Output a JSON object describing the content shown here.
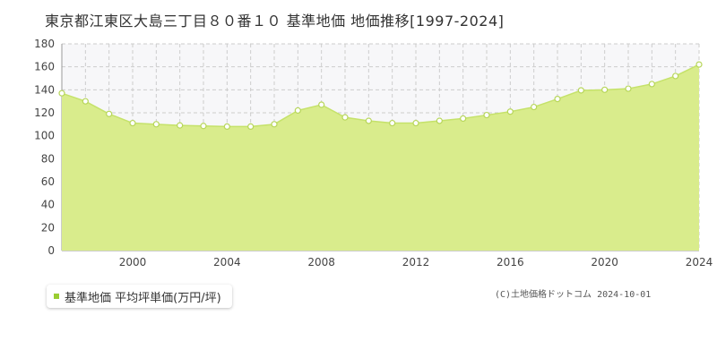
{
  "title": "東京都江東区大島三丁目８０番１０ 基準地価 地価推移[1997-2024]",
  "copyright": "(C)土地価格ドットコム 2024-10-01",
  "colors": {
    "fill": "#d9ec8c",
    "line": "#c5e26a",
    "marker_fill": "#ffffff",
    "marker_stroke": "#b7d65a",
    "grid": "#cccccc",
    "plot_bg": "#f7f7f9",
    "legend_swatch": "#9acd32"
  },
  "chart_data": {
    "type": "area",
    "xlim": [
      1997,
      2024
    ],
    "ylim": [
      0,
      180
    ],
    "x_ticks": [
      2000,
      2004,
      2008,
      2012,
      2016,
      2020,
      2024
    ],
    "y_ticks": [
      0,
      20,
      40,
      60,
      80,
      100,
      120,
      140,
      160,
      180
    ],
    "grid": true,
    "legend_position": "bottom-left",
    "series": [
      {
        "name": "基準地価 平均坪単価(万円/坪)",
        "x": [
          1997,
          1998,
          1999,
          2000,
          2001,
          2002,
          2003,
          2004,
          2005,
          2006,
          2007,
          2008,
          2009,
          2010,
          2011,
          2012,
          2013,
          2014,
          2015,
          2016,
          2017,
          2018,
          2019,
          2020,
          2021,
          2022,
          2023,
          2024
        ],
        "y": [
          137,
          130,
          119,
          111,
          110,
          109,
          108.5,
          108,
          108,
          110,
          122,
          127,
          116,
          113,
          111,
          111,
          113,
          115,
          118,
          121,
          125,
          132,
          139.5,
          140,
          141,
          145,
          152,
          162
        ]
      }
    ]
  }
}
